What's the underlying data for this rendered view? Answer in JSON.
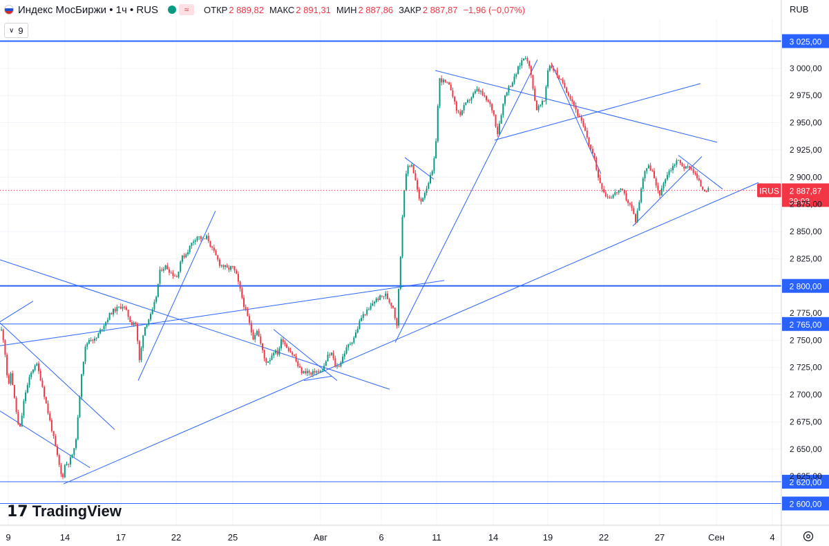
{
  "header": {
    "symbol": "Индекс МосБиржи • 1ч • RUS",
    "open_label": "ОТКР",
    "open_value": "2 889,82",
    "high_label": "МАКС",
    "high_value": "2 891,31",
    "low_label": "МИН",
    "low_value": "2 887,86",
    "close_label": "ЗАКР",
    "close_value": "2 887,87",
    "change": "−1,96 (−0,07%)",
    "wave_glyph": "≈"
  },
  "indicator_count": "9",
  "currency": "RUB",
  "logo_text": "TradingView",
  "colors": {
    "up": "#089981",
    "down": "#f23645",
    "line": "#2962ff",
    "grid": "#f0f3fa"
  },
  "chart_data": {
    "type": "candlestick",
    "timeframe": "1h",
    "ylim": [
      2580,
      3045
    ],
    "y_ticks": [
      2600,
      2625,
      2650,
      2675,
      2700,
      2725,
      2750,
      2775,
      2800,
      2825,
      2850,
      2875,
      2900,
      2925,
      2950,
      2975,
      3000,
      3025
    ],
    "y_tick_labels": [
      "2 600,00",
      "2 625,00",
      "2 650,00",
      "2 675,00",
      "2 700,00",
      "2 725,00",
      "2 750,00",
      "2 775,00",
      "2 800,00",
      "2 825,00",
      "2 850,00",
      "2 875,00",
      "2 900,00",
      "2 925,00",
      "2 950,00",
      "2 975,00",
      "3 000,00",
      "3 025,00"
    ],
    "x_ticks": [
      "9",
      "14",
      "17",
      "22",
      "25",
      "Авг",
      "6",
      "11",
      "14",
      "19",
      "22",
      "27",
      "Сен",
      "4"
    ],
    "last_price": {
      "value": 2887.87,
      "label": "IRUS",
      "price_label": "2 887,87",
      "timer": "39:03"
    },
    "horizontal_levels": [
      {
        "value": 3025,
        "label": "3 025,00",
        "weight": "thick"
      },
      {
        "value": 2800,
        "label": "2 800,00",
        "weight": "thick"
      },
      {
        "value": 2765,
        "label": "2 765,00",
        "weight": "thin"
      },
      {
        "value": 2620,
        "label": "2 620,00",
        "weight": "thin"
      },
      {
        "value": 2600,
        "label": "2 600,00",
        "weight": "thin"
      }
    ],
    "anchors": [
      [
        0,
        2765
      ],
      [
        6,
        2748
      ],
      [
        12,
        2705
      ],
      [
        16,
        2722
      ],
      [
        20,
        2700
      ],
      [
        28,
        2665
      ],
      [
        36,
        2700
      ],
      [
        44,
        2718
      ],
      [
        52,
        2730
      ],
      [
        60,
        2712
      ],
      [
        68,
        2688
      ],
      [
        76,
        2665
      ],
      [
        84,
        2640
      ],
      [
        90,
        2622
      ],
      [
        94,
        2636
      ],
      [
        100,
        2638
      ],
      [
        108,
        2650
      ],
      [
        112,
        2672
      ],
      [
        118,
        2720
      ],
      [
        124,
        2745
      ],
      [
        130,
        2752
      ],
      [
        138,
        2750
      ],
      [
        146,
        2760
      ],
      [
        154,
        2768
      ],
      [
        160,
        2775
      ],
      [
        166,
        2778
      ],
      [
        172,
        2780
      ],
      [
        178,
        2782
      ],
      [
        184,
        2775
      ],
      [
        190,
        2765
      ],
      [
        196,
        2768
      ],
      [
        202,
        2730
      ],
      [
        208,
        2760
      ],
      [
        214,
        2768
      ],
      [
        220,
        2775
      ],
      [
        226,
        2790
      ],
      [
        232,
        2815
      ],
      [
        240,
        2818
      ],
      [
        248,
        2812
      ],
      [
        256,
        2808
      ],
      [
        262,
        2825
      ],
      [
        270,
        2830
      ],
      [
        278,
        2840
      ],
      [
        286,
        2846
      ],
      [
        294,
        2842
      ],
      [
        300,
        2845
      ],
      [
        306,
        2835
      ],
      [
        312,
        2828
      ],
      [
        318,
        2820
      ],
      [
        324,
        2818
      ],
      [
        330,
        2815
      ],
      [
        336,
        2818
      ],
      [
        342,
        2810
      ],
      [
        348,
        2795
      ],
      [
        354,
        2780
      ],
      [
        360,
        2768
      ],
      [
        366,
        2752
      ],
      [
        372,
        2760
      ],
      [
        378,
        2745
      ],
      [
        384,
        2730
      ],
      [
        390,
        2732
      ],
      [
        396,
        2740
      ],
      [
        402,
        2738
      ],
      [
        408,
        2752
      ],
      [
        414,
        2745
      ],
      [
        420,
        2740
      ],
      [
        426,
        2735
      ],
      [
        432,
        2725
      ],
      [
        438,
        2720
      ],
      [
        444,
        2722
      ],
      [
        450,
        2718
      ],
      [
        456,
        2722
      ],
      [
        462,
        2720
      ],
      [
        468,
        2724
      ],
      [
        474,
        2735
      ],
      [
        480,
        2738
      ],
      [
        486,
        2725
      ],
      [
        492,
        2728
      ],
      [
        498,
        2738
      ],
      [
        504,
        2745
      ],
      [
        510,
        2750
      ],
      [
        516,
        2758
      ],
      [
        522,
        2770
      ],
      [
        528,
        2775
      ],
      [
        534,
        2778
      ],
      [
        540,
        2785
      ],
      [
        546,
        2788
      ],
      [
        552,
        2790
      ],
      [
        558,
        2792
      ],
      [
        564,
        2785
      ],
      [
        570,
        2780
      ],
      [
        574,
        2760
      ],
      [
        580,
        2830
      ],
      [
        584,
        2885
      ],
      [
        590,
        2910
      ],
      [
        596,
        2912
      ],
      [
        602,
        2895
      ],
      [
        608,
        2875
      ],
      [
        614,
        2885
      ],
      [
        620,
        2895
      ],
      [
        626,
        2905
      ],
      [
        630,
        2922
      ],
      [
        636,
        2990
      ],
      [
        642,
        2988
      ],
      [
        648,
        2985
      ],
      [
        654,
        2980
      ],
      [
        660,
        2962
      ],
      [
        666,
        2958
      ],
      [
        672,
        2965
      ],
      [
        678,
        2970
      ],
      [
        684,
        2975
      ],
      [
        690,
        2980
      ],
      [
        696,
        2978
      ],
      [
        702,
        2972
      ],
      [
        708,
        2968
      ],
      [
        714,
        2960
      ],
      [
        720,
        2940
      ],
      [
        726,
        2960
      ],
      [
        732,
        2978
      ],
      [
        738,
        2984
      ],
      [
        744,
        2990
      ],
      [
        750,
        3000
      ],
      [
        756,
        3008
      ],
      [
        762,
        3012
      ],
      [
        770,
        2990
      ],
      [
        776,
        2962
      ],
      [
        782,
        2966
      ],
      [
        788,
        2970
      ],
      [
        794,
        3004
      ],
      [
        800,
        3000
      ],
      [
        806,
        2995
      ],
      [
        812,
        2988
      ],
      [
        818,
        2982
      ],
      [
        824,
        2975
      ],
      [
        830,
        2968
      ],
      [
        836,
        2958
      ],
      [
        842,
        2950
      ],
      [
        848,
        2940
      ],
      [
        854,
        2928
      ],
      [
        860,
        2918
      ],
      [
        866,
        2900
      ],
      [
        872,
        2890
      ],
      [
        878,
        2882
      ],
      [
        884,
        2882
      ],
      [
        890,
        2885
      ],
      [
        896,
        2888
      ],
      [
        902,
        2886
      ],
      [
        908,
        2878
      ],
      [
        914,
        2872
      ],
      [
        920,
        2860
      ],
      [
        926,
        2880
      ],
      [
        932,
        2905
      ],
      [
        938,
        2910
      ],
      [
        944,
        2906
      ],
      [
        950,
        2890
      ],
      [
        956,
        2884
      ],
      [
        962,
        2898
      ],
      [
        968,
        2905
      ],
      [
        974,
        2910
      ],
      [
        980,
        2916
      ],
      [
        986,
        2912
      ],
      [
        992,
        2908
      ],
      [
        998,
        2910
      ],
      [
        1004,
        2905
      ],
      [
        1010,
        2898
      ],
      [
        1016,
        2890
      ],
      [
        1022,
        2888
      ],
      [
        1028,
        2887.87
      ]
    ],
    "trendlines": [
      [
        [
          0,
          2824
        ],
        [
          564,
          2705
        ]
      ],
      [
        [
          0,
          2745
        ],
        [
          643,
          2805
        ]
      ],
      [
        [
          0,
          2767
        ],
        [
          48,
          2786
        ]
      ],
      [
        [
          0,
          2685
        ],
        [
          130,
          2633
        ]
      ],
      [
        [
          0,
          2766
        ],
        [
          166,
          2668
        ]
      ],
      [
        [
          92,
          2618
        ],
        [
          1098,
          2895
        ]
      ],
      [
        [
          200,
          2713
        ],
        [
          312,
          2869
        ]
      ],
      [
        [
          396,
          2760
        ],
        [
          488,
          2713
        ]
      ],
      [
        [
          440,
          2713
        ],
        [
          480,
          2717
        ]
      ],
      [
        [
          572,
          2748
        ],
        [
          778,
          3008
        ]
      ],
      [
        [
          586,
          2918
        ],
        [
          628,
          2898
        ]
      ],
      [
        [
          630,
          2998
        ],
        [
          1038,
          2932
        ]
      ],
      [
        [
          716,
          2934
        ],
        [
          1014,
          2986
        ]
      ],
      [
        [
          798,
          3005
        ],
        [
          870,
          2903
        ]
      ],
      [
        [
          916,
          2855
        ],
        [
          1016,
          2919
        ]
      ],
      [
        [
          982,
          2920
        ],
        [
          1046,
          2889
        ]
      ]
    ]
  }
}
